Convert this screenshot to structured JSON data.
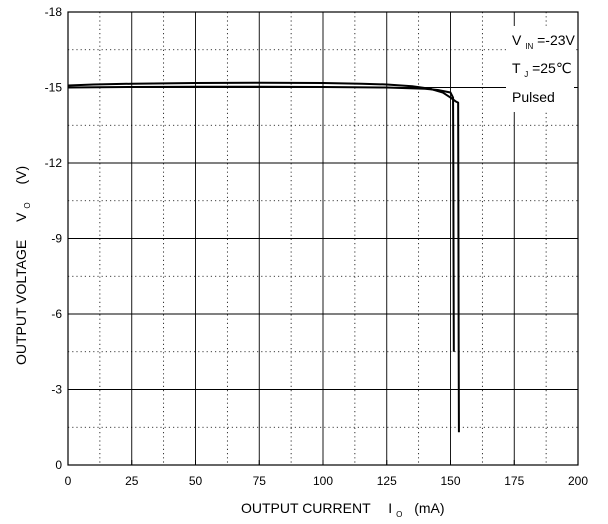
{
  "chart_data": {
    "type": "line",
    "title": "",
    "xlabel": {
      "main": "OUTPUT CURRENT",
      "symbol": "I",
      "sub": "O",
      "unit": "(mA)"
    },
    "ylabel": {
      "main": "OUTPUT VOLTAGE",
      "symbol": "V",
      "sub": "O",
      "unit": "(V)"
    },
    "xlim": [
      0,
      200
    ],
    "ylim": [
      0,
      -18
    ],
    "xticks": [
      "0",
      "25",
      "50",
      "75",
      "100",
      "125",
      "150",
      "175",
      "200"
    ],
    "yticks": [
      "0",
      "-3",
      "-6",
      "-9",
      "-12",
      "-15",
      "-18"
    ],
    "grid": {
      "major": true,
      "minor_dotted": true
    },
    "annotations": [
      {
        "symbol": "V",
        "sub": "IN",
        "value": "=-23V"
      },
      {
        "symbol": "T",
        "sub": "J",
        "value": "=25℃"
      },
      {
        "symbol": "",
        "sub": "",
        "value": "Pulsed"
      }
    ],
    "series": [
      {
        "x": [
          0,
          10,
          25,
          50,
          75,
          100,
          115,
          125,
          135,
          142,
          147,
          150,
          152,
          153,
          153.1,
          153.2,
          153.3
        ],
        "y": [
          -15.08,
          -15.12,
          -15.15,
          -15.18,
          -15.19,
          -15.18,
          -15.15,
          -15.12,
          -15.05,
          -14.95,
          -14.8,
          -14.6,
          -14.45,
          -14.4,
          -10,
          -5,
          -1.3
        ]
      },
      {
        "x": [
          0,
          25,
          50,
          75,
          100,
          125,
          140,
          145,
          150,
          151,
          151.1,
          151.2,
          151.3
        ],
        "y": [
          -15.0,
          -15.02,
          -15.03,
          -15.03,
          -15.02,
          -15.0,
          -14.95,
          -14.9,
          -14.8,
          -14.6,
          -12,
          -8,
          -4.5
        ]
      }
    ]
  }
}
